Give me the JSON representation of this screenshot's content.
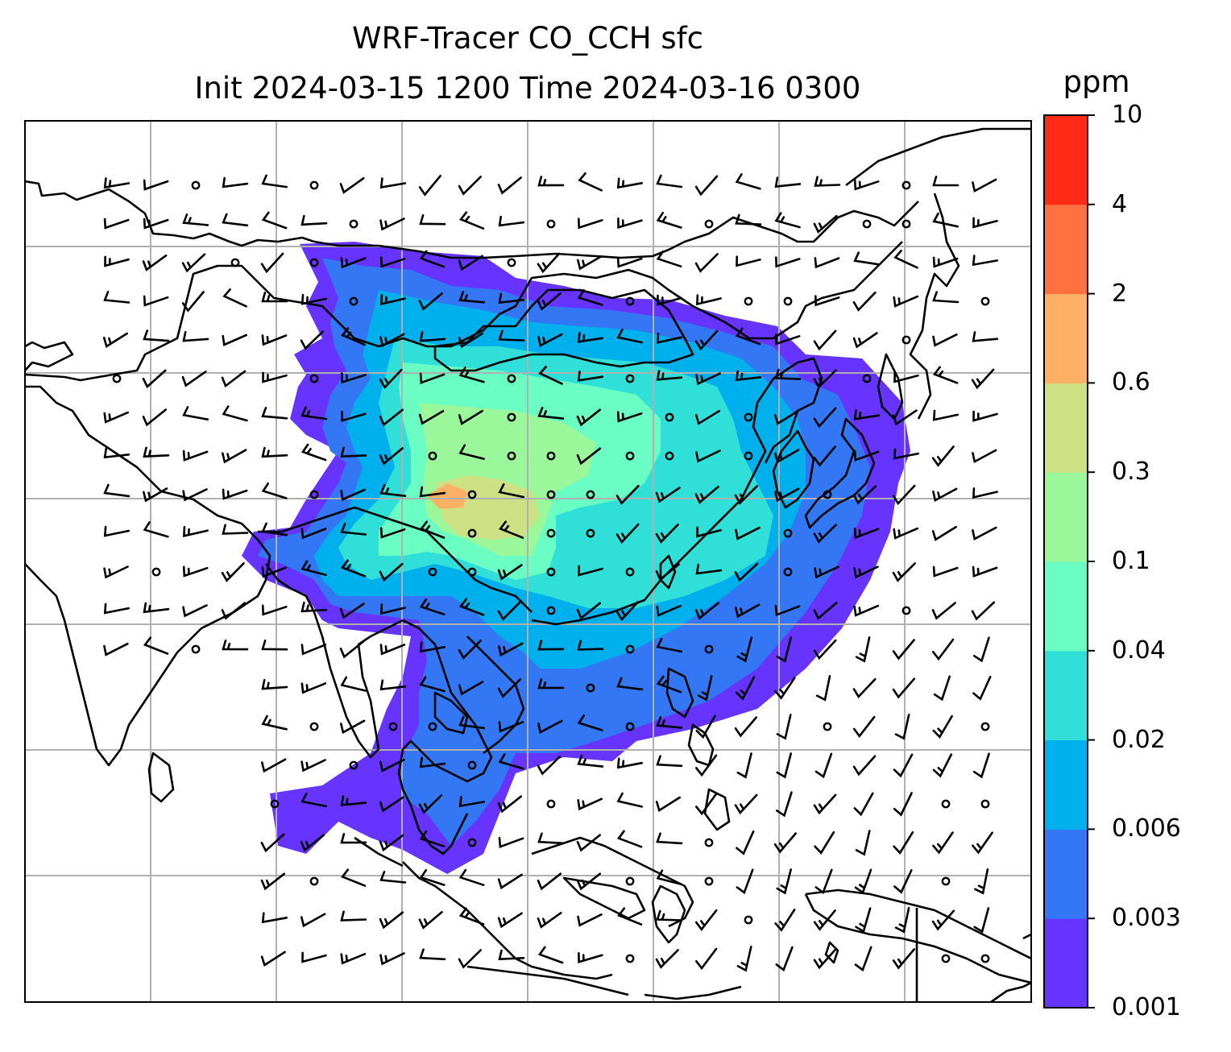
{
  "title": {
    "line1": "WRF-Tracer CO_CCH sfc",
    "line2": "Init 2024-03-15 1200 Time 2024-03-16 0300"
  },
  "colorbar": {
    "unit": "ppm",
    "levels": [
      "0.001",
      "0.003",
      "0.006",
      "0.02",
      "0.04",
      "0.1",
      "0.3",
      "0.6",
      "2",
      "4",
      "10"
    ],
    "colors": [
      "#6633ff",
      "#3377f5",
      "#00b0ec",
      "#2fdfd8",
      "#6afdc4",
      "#9af79a",
      "#cde084",
      "#feb065",
      "#ff7140",
      "#ff2b17"
    ]
  },
  "map": {
    "field": "CO_CCH",
    "level": "sfc",
    "gridlines": true,
    "overlay": "wind barbs",
    "coastline_color": "#000000",
    "gridline_color": "#b0b0b0"
  }
}
